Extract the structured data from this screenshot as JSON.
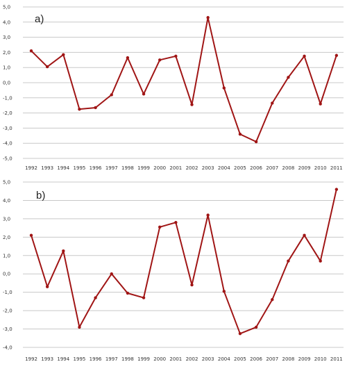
{
  "chart_data": [
    {
      "type": "line",
      "panel_label": "a)",
      "title": "",
      "xlabel": "",
      "ylabel": "",
      "categories": [
        "1992",
        "1993",
        "1994",
        "1995",
        "1996",
        "1997",
        "1998",
        "1999",
        "2000",
        "2001",
        "2002",
        "2003",
        "2004",
        "2005",
        "2006",
        "2007",
        "2008",
        "2009",
        "2010",
        "2011"
      ],
      "values": [
        2.1,
        1.05,
        1.85,
        -1.75,
        -1.65,
        -0.8,
        1.65,
        -0.75,
        1.5,
        1.75,
        -1.45,
        4.3,
        -0.35,
        -3.4,
        -3.9,
        -1.35,
        0.35,
        1.75,
        -1.4,
        1.8
      ],
      "ylim": [
        -5,
        5
      ],
      "yticks": [
        -5,
        -4,
        -3,
        -2,
        -1,
        0,
        1,
        2,
        3,
        4,
        5
      ],
      "ytick_labels": [
        "-5,0",
        "-4,0",
        "-3,0",
        "-2,0",
        "-1,0",
        "0,0",
        "1,0",
        "2,0",
        "3,0",
        "4,0",
        "5,0"
      ],
      "grid": true,
      "legend": "none",
      "line_color": "#a01515"
    },
    {
      "type": "line",
      "panel_label": "b)",
      "title": "",
      "xlabel": "",
      "ylabel": "",
      "categories": [
        "1992",
        "1993",
        "1994",
        "1995",
        "1996",
        "1997",
        "1998",
        "1999",
        "2000",
        "2001",
        "2002",
        "2003",
        "2004",
        "2005",
        "2006",
        "2007",
        "2008",
        "2009",
        "2010",
        "2011"
      ],
      "values": [
        2.1,
        -0.7,
        1.25,
        -2.9,
        -1.3,
        0.0,
        -1.05,
        -1.3,
        2.55,
        2.8,
        -0.6,
        3.2,
        -0.95,
        -3.25,
        -2.9,
        -1.4,
        0.7,
        2.1,
        0.7,
        4.6
      ],
      "ylim": [
        -4,
        5
      ],
      "yticks": [
        -4,
        -3,
        -2,
        -1,
        0,
        1,
        2,
        3,
        4,
        5
      ],
      "ytick_labels": [
        "-4,0",
        "-3,0",
        "-2,0",
        "-1,0",
        "0,0",
        "1,0",
        "2,0",
        "3,0",
        "4,0",
        "5,0"
      ],
      "grid": true,
      "legend": "none",
      "line_color": "#a01515"
    }
  ]
}
